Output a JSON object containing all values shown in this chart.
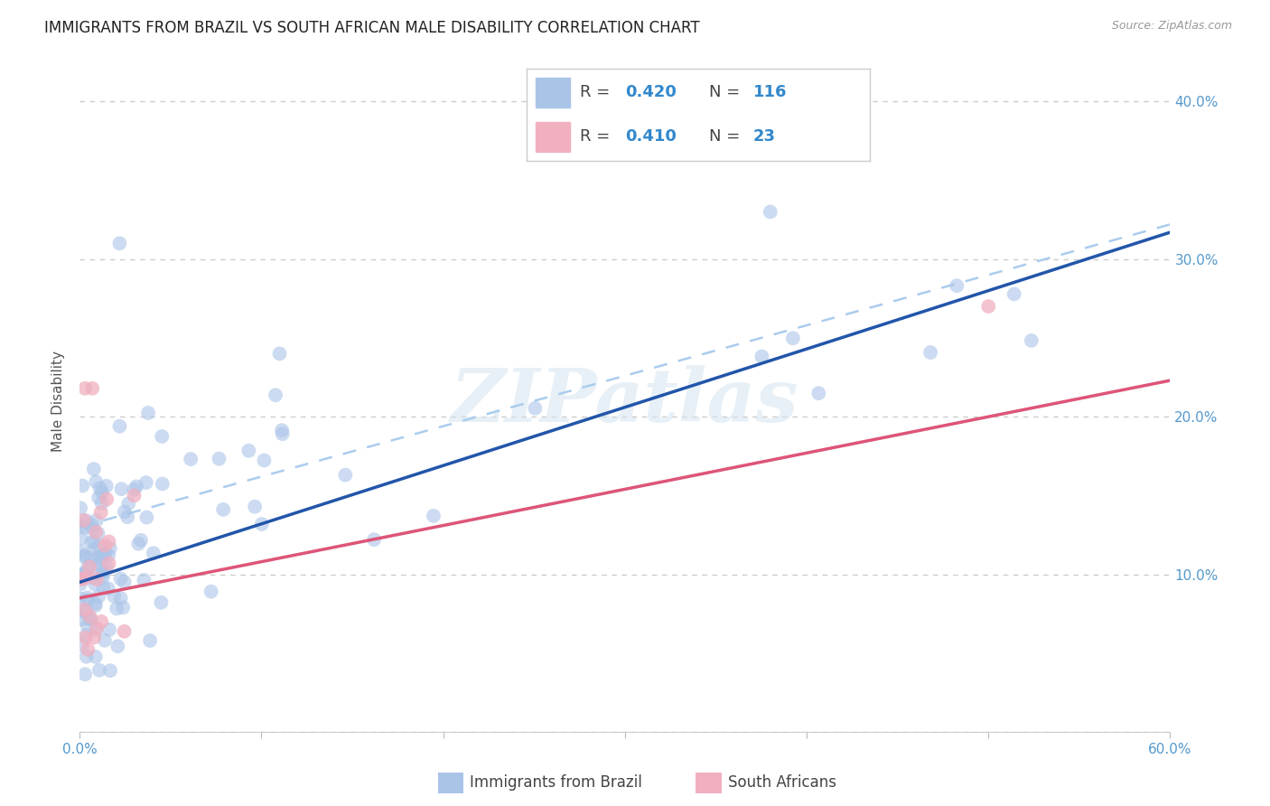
{
  "title": "IMMIGRANTS FROM BRAZIL VS SOUTH AFRICAN MALE DISABILITY CORRELATION CHART",
  "source": "Source: ZipAtlas.com",
  "ylabel": "Male Disability",
  "xlim": [
    0.0,
    0.6
  ],
  "ylim": [
    0.0,
    0.42
  ],
  "xtick_positions": [
    0.0,
    0.1,
    0.2,
    0.3,
    0.4,
    0.5,
    0.6
  ],
  "xtick_labels": [
    "0.0%",
    "",
    "",
    "",
    "",
    "",
    "60.0%"
  ],
  "ytick_positions": [
    0.0,
    0.1,
    0.2,
    0.3,
    0.4
  ],
  "ytick_labels_right": [
    "",
    "10.0%",
    "20.0%",
    "30.0%",
    "40.0%"
  ],
  "grid_color": "#cccccc",
  "background_color": "#ffffff",
  "brazil_color": "#aac4e8",
  "brazil_line_color": "#2255aa",
  "brazil_R": 0.42,
  "brazil_N": 116,
  "sa_color": "#f0b0c0",
  "sa_line_color": "#dd5577",
  "sa_R": 0.41,
  "sa_N": 23,
  "watermark": "ZIPatlas",
  "title_fontsize": 12,
  "axis_label_fontsize": 11,
  "tick_fontsize": 11,
  "legend_fontsize": 13,
  "brazil_line_intercept": 0.095,
  "brazil_line_slope": 0.37,
  "sa_line_intercept": 0.085,
  "sa_line_slope": 0.23,
  "dash_line_intercept": 0.13,
  "dash_line_slope": 0.32
}
